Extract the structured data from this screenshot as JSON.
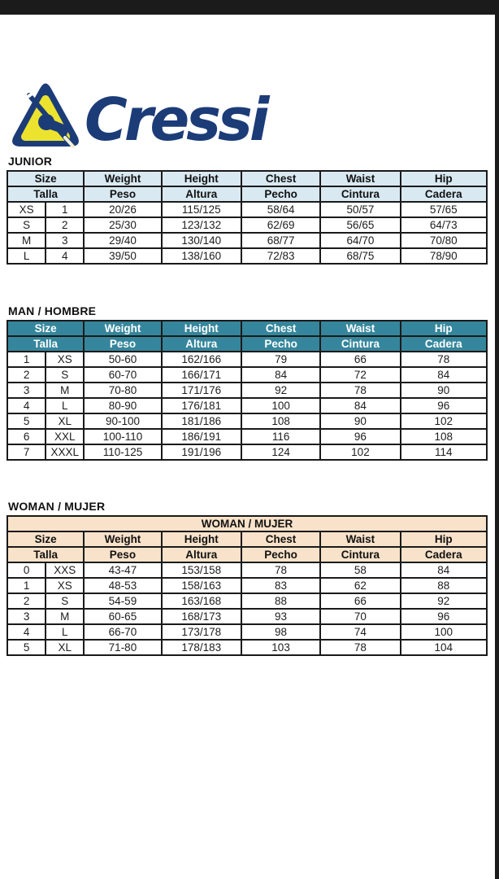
{
  "logo": {
    "text": "Cressi",
    "mark_icon": "cressi-triangle-harpoon-icon"
  },
  "colors": {
    "junior_header_bg": "#d9e9f2",
    "man_header_bg": "#35869c",
    "man_header_text": "#ffffff",
    "woman_header_bg": "#f8e2c9",
    "logo_navy": "#1c3c78",
    "logo_yellow": "#ece32f",
    "table_border": "#1a1a1a",
    "top_bar": "#1b1b1b"
  },
  "columns": {
    "en": [
      "Size",
      "Weight",
      "Height",
      "Chest",
      "Waist",
      "Hip"
    ],
    "es": [
      "Talla",
      "Peso",
      "Altura",
      "Pecho",
      "Cintura",
      "Cadera"
    ]
  },
  "sections": [
    {
      "id": "junior",
      "label": "JUNIOR",
      "title_row": null,
      "rows": [
        [
          "XS",
          "1",
          "20/26",
          "115/125",
          "58/64",
          "50/57",
          "57/65"
        ],
        [
          "S",
          "2",
          "25/30",
          "123/132",
          "62/69",
          "56/65",
          "64/73"
        ],
        [
          "M",
          "3",
          "29/40",
          "130/140",
          "68/77",
          "64/70",
          "70/80"
        ],
        [
          "L",
          "4",
          "39/50",
          "138/160",
          "72/83",
          "68/75",
          "78/90"
        ]
      ]
    },
    {
      "id": "man",
      "label": "MAN / HOMBRE",
      "title_row": null,
      "rows": [
        [
          "1",
          "XS",
          "50-60",
          "162/166",
          "79",
          "66",
          "78"
        ],
        [
          "2",
          "S",
          "60-70",
          "166/171",
          "84",
          "72",
          "84"
        ],
        [
          "3",
          "M",
          "70-80",
          "171/176",
          "92",
          "78",
          "90"
        ],
        [
          "4",
          "L",
          "80-90",
          "176/181",
          "100",
          "84",
          "96"
        ],
        [
          "5",
          "XL",
          "90-100",
          "181/186",
          "108",
          "90",
          "102"
        ],
        [
          "6",
          "XXL",
          "100-110",
          "186/191",
          "116",
          "96",
          "108"
        ],
        [
          "7",
          "XXXL",
          "110-125",
          "191/196",
          "124",
          "102",
          "114"
        ]
      ]
    },
    {
      "id": "woman",
      "label": "WOMAN / MUJER",
      "title_row": "WOMAN / MUJER",
      "rows": [
        [
          "0",
          "XXS",
          "43-47",
          "153/158",
          "78",
          "58",
          "84"
        ],
        [
          "1",
          "XS",
          "48-53",
          "158/163",
          "83",
          "62",
          "88"
        ],
        [
          "2",
          "S",
          "54-59",
          "163/168",
          "88",
          "66",
          "92"
        ],
        [
          "3",
          "M",
          "60-65",
          "168/173",
          "93",
          "70",
          "96"
        ],
        [
          "4",
          "L",
          "66-70",
          "173/178",
          "98",
          "74",
          "100"
        ],
        [
          "5",
          "XL",
          "71-80",
          "178/183",
          "103",
          "78",
          "104"
        ]
      ]
    }
  ]
}
